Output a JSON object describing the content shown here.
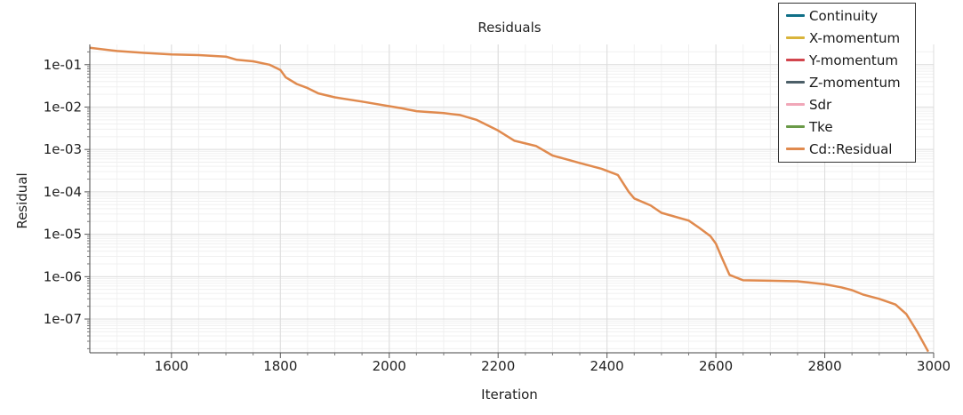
{
  "chart_data": {
    "type": "line",
    "title": "Residuals",
    "xlabel": "Iteration",
    "ylabel": "Residual",
    "xlim": [
      1450,
      3000
    ],
    "ylim": [
      1.6e-08,
      0.3
    ],
    "yscale": "log",
    "grid": true,
    "legend_position": "top-right",
    "x_ticks": [
      1600,
      1800,
      2000,
      2200,
      2400,
      2600,
      2800,
      3000
    ],
    "x_tick_labels": [
      "1600",
      "1800",
      "2000",
      "2200",
      "2400",
      "2600",
      "2800",
      "3000"
    ],
    "y_ticks": [
      1e-07,
      1e-06,
      1e-05,
      0.0001,
      0.001,
      0.01,
      0.1
    ],
    "y_tick_labels": [
      "1e-07",
      "1e-06",
      "1e-05",
      "1e-04",
      "1e-03",
      "1e-02",
      "1e-01"
    ],
    "series": [
      {
        "name": "Continuity",
        "color": "#0f6f87",
        "x": [],
        "y": []
      },
      {
        "name": "X-momentum",
        "color": "#d9b43a",
        "x": [],
        "y": []
      },
      {
        "name": "Y-momentum",
        "color": "#d2454d",
        "x": [],
        "y": []
      },
      {
        "name": "Z-momentum",
        "color": "#4c5f68",
        "x": [],
        "y": []
      },
      {
        "name": "Sdr",
        "color": "#f1a7b8",
        "x": [],
        "y": []
      },
      {
        "name": "Tke",
        "color": "#6a9a48",
        "x": [],
        "y": []
      },
      {
        "name": "Cd::Residual",
        "color": "#e08a4e",
        "x": [
          1450,
          1500,
          1550,
          1600,
          1650,
          1700,
          1720,
          1750,
          1780,
          1800,
          1810,
          1830,
          1850,
          1870,
          1900,
          1950,
          2000,
          2020,
          2050,
          2100,
          2130,
          2160,
          2200,
          2230,
          2270,
          2300,
          2350,
          2390,
          2420,
          2440,
          2450,
          2480,
          2500,
          2550,
          2570,
          2590,
          2600,
          2610,
          2625,
          2650,
          2700,
          2750,
          2800,
          2830,
          2850,
          2870,
          2900,
          2930,
          2950,
          2970,
          2990
        ],
        "y": [
          0.25,
          0.21,
          0.19,
          0.175,
          0.168,
          0.155,
          0.13,
          0.12,
          0.1,
          0.075,
          0.05,
          0.035,
          0.028,
          0.021,
          0.017,
          0.0135,
          0.0105,
          0.0095,
          0.008,
          0.0072,
          0.0065,
          0.005,
          0.0028,
          0.0016,
          0.0012,
          0.00072,
          0.00048,
          0.00035,
          0.00025,
          0.0001,
          7e-05,
          4.8e-05,
          3.2e-05,
          2.1e-05,
          1.4e-05,
          9e-06,
          6e-06,
          3e-06,
          1.1e-06,
          8.2e-07,
          8e-07,
          7.8e-07,
          6.6e-07,
          5.6e-07,
          4.8e-07,
          3.8e-07,
          3e-07,
          2.2e-07,
          1.3e-07,
          5e-08,
          1.7e-08
        ]
      }
    ]
  }
}
